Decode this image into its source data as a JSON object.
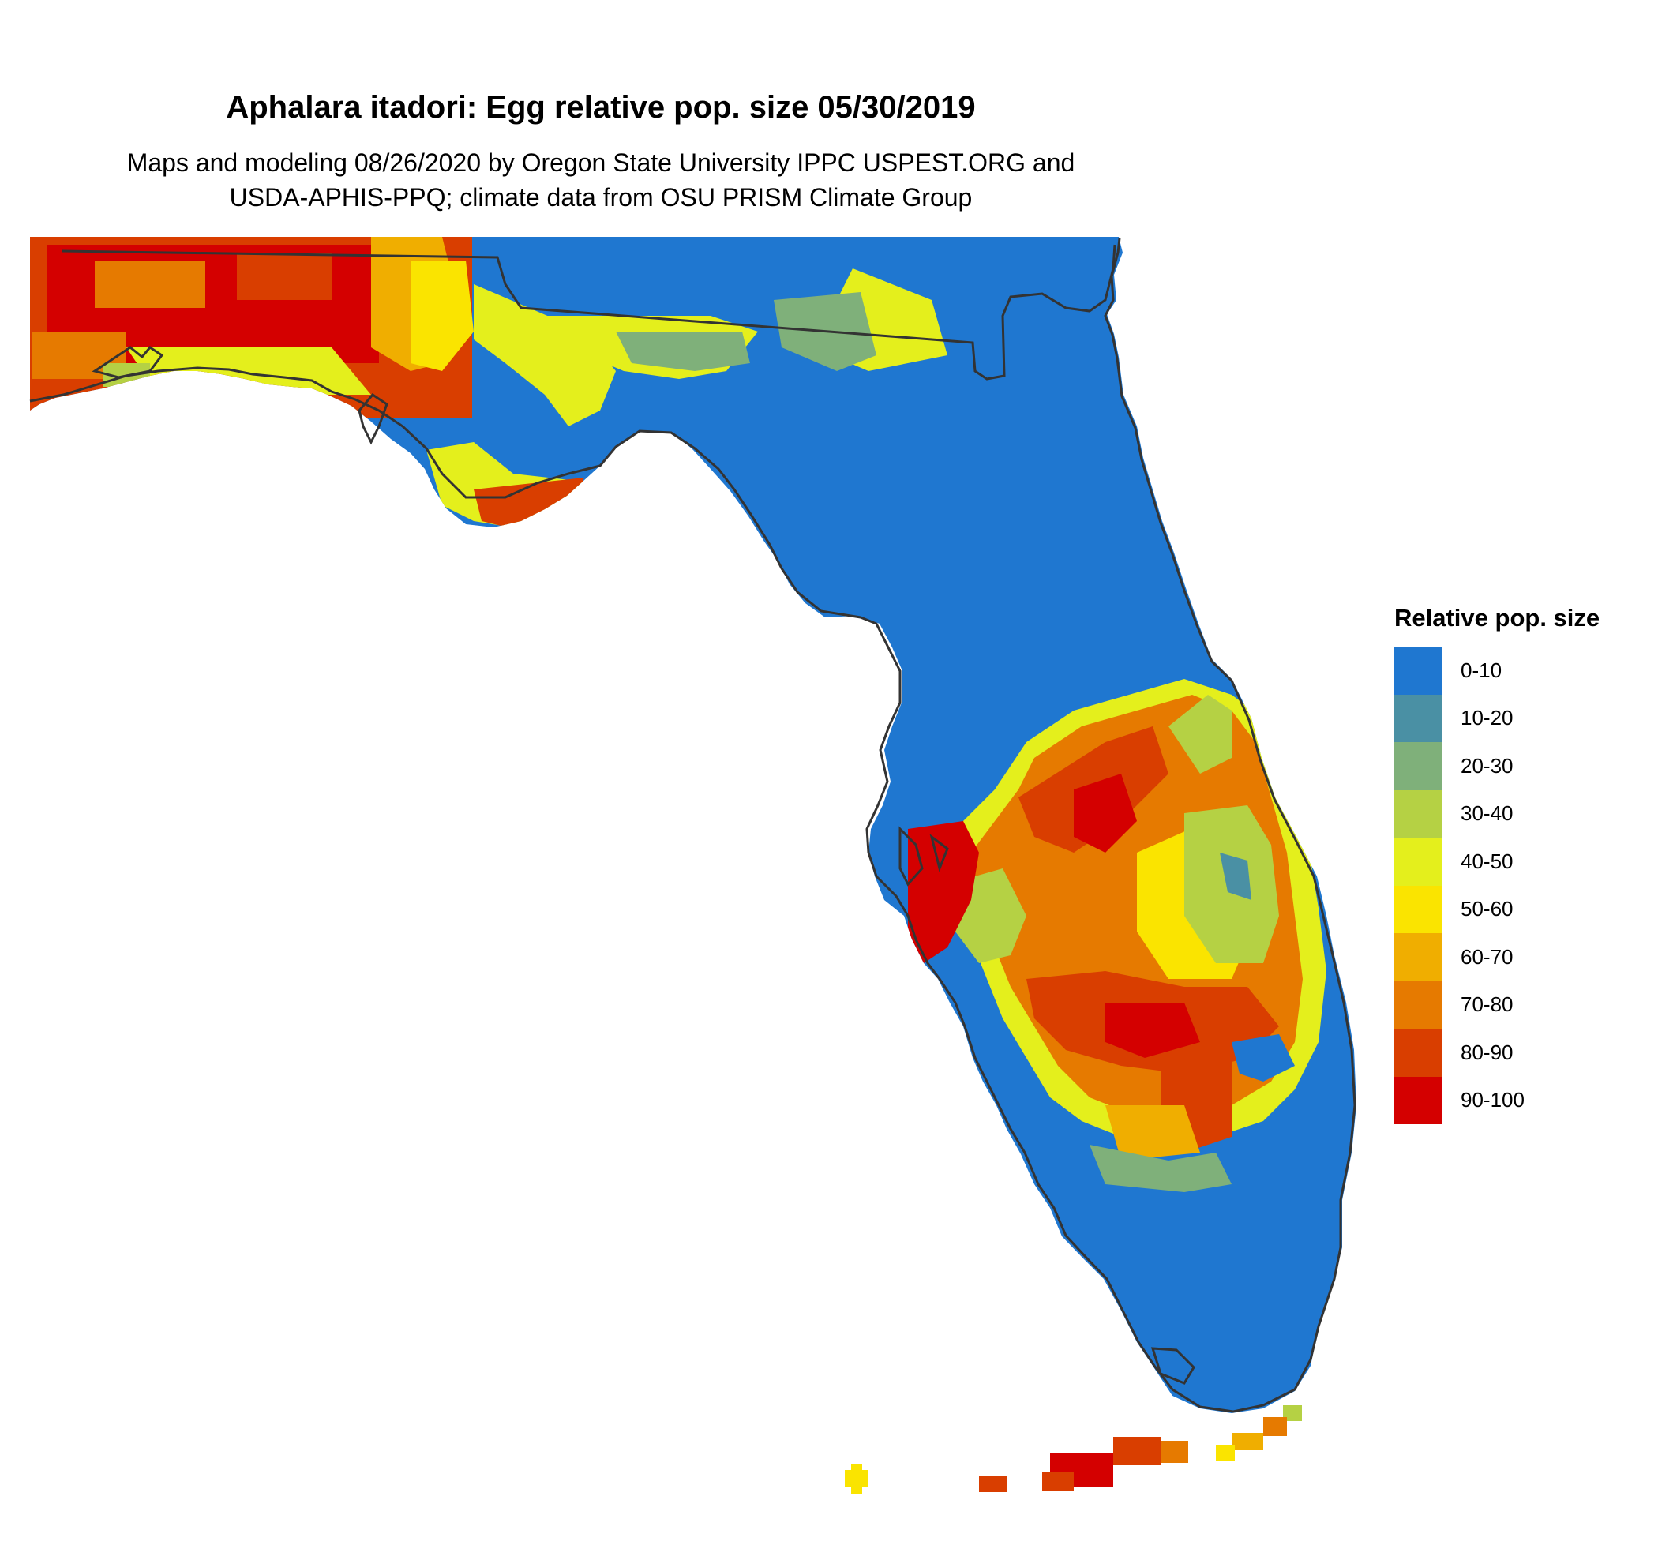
{
  "header": {
    "title": "Aphalara itadori: Egg relative pop. size 05/30/2019",
    "subtitle_line1": "Maps and modeling 08/26/2020 by Oregon State University IPPC USPEST.ORG and",
    "subtitle_line2": "USDA-APHIS-PPQ; climate data from OSU PRISM Climate Group"
  },
  "legend": {
    "title": "Relative pop. size",
    "items": [
      {
        "label": "0-10",
        "color": "#1f77d0"
      },
      {
        "label": "10-20",
        "color": "#4a90a4"
      },
      {
        "label": "20-30",
        "color": "#7fb07a"
      },
      {
        "label": "30-40",
        "color": "#b5d144"
      },
      {
        "label": "40-50",
        "color": "#e4ef1c"
      },
      {
        "label": "50-60",
        "color": "#fae400"
      },
      {
        "label": "60-70",
        "color": "#f0ae00"
      },
      {
        "label": "70-80",
        "color": "#e67a00"
      },
      {
        "label": "80-90",
        "color": "#d93e00"
      },
      {
        "label": "90-100",
        "color": "#d40000"
      }
    ]
  },
  "map": {
    "region": "Florida",
    "outline_color": "#333333"
  }
}
